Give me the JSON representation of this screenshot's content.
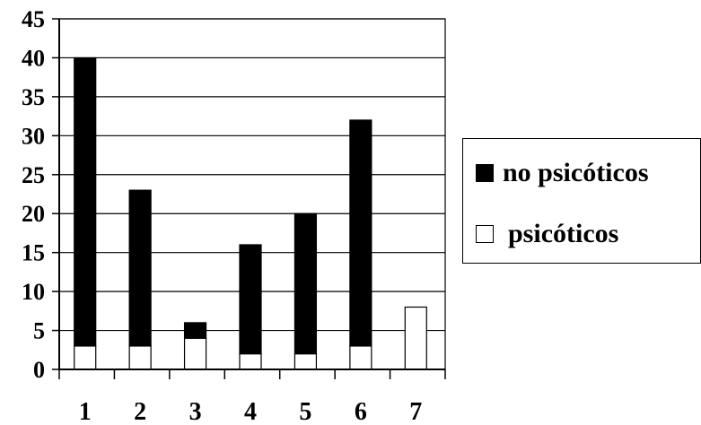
{
  "chart_data": {
    "type": "bar",
    "stacked": true,
    "categories": [
      "1",
      "2",
      "3",
      "4",
      "5",
      "6",
      "7"
    ],
    "series": [
      {
        "name": "psicóticos",
        "color": "#ffffff",
        "values": [
          3,
          3,
          4,
          2,
          2,
          3,
          8
        ]
      },
      {
        "name": "no psicóticos",
        "color": "#000000",
        "values": [
          37,
          20,
          2,
          14,
          18,
          29,
          0
        ]
      }
    ],
    "ylim": [
      0,
      45
    ],
    "yticks": [
      0,
      5,
      10,
      15,
      20,
      25,
      30,
      35,
      40,
      45
    ],
    "grid": true,
    "legend_position": "right",
    "legend": [
      {
        "label": "no psicóticos",
        "color": "#000000"
      },
      {
        "label": "psicóticos",
        "color": "#ffffff"
      }
    ]
  }
}
